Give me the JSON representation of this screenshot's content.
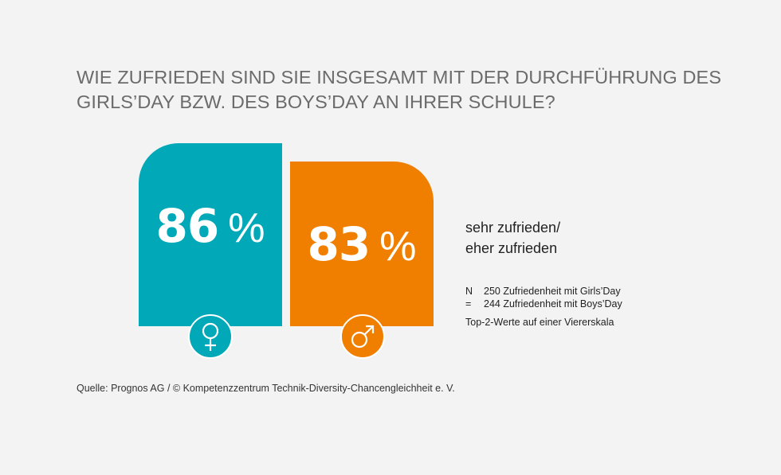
{
  "title": "WIE ZUFRIEDEN SIND SIE INSGESAMT MIT DER DURCHFÜHRUNG DES GIRLS’DAY BZW. DES BOYS’DAY AN IHRER SCHULE?",
  "chart_data": {
    "type": "bar",
    "categories": [
      "female",
      "male"
    ],
    "values": [
      86,
      83
    ],
    "value_labels": [
      "86",
      "83"
    ],
    "unit": "%",
    "colors": [
      "#00a8b8",
      "#f07f00"
    ],
    "icons": [
      "female-symbol-icon",
      "male-symbol-icon"
    ]
  },
  "legend": {
    "line1": "sehr zufrieden/",
    "line2": "eher zufrieden"
  },
  "sample": {
    "label": "N =",
    "rows": [
      "250 Zufriedenheit mit Girls’Day",
      "244 Zufriedenheit mit Boys’Day"
    ]
  },
  "note": "Top-2-Werte auf einer Viererskala",
  "source": "Quelle: Prognos AG / © Kompetenzzentrum Technik-Diversity-Chancengleichheit e. V."
}
